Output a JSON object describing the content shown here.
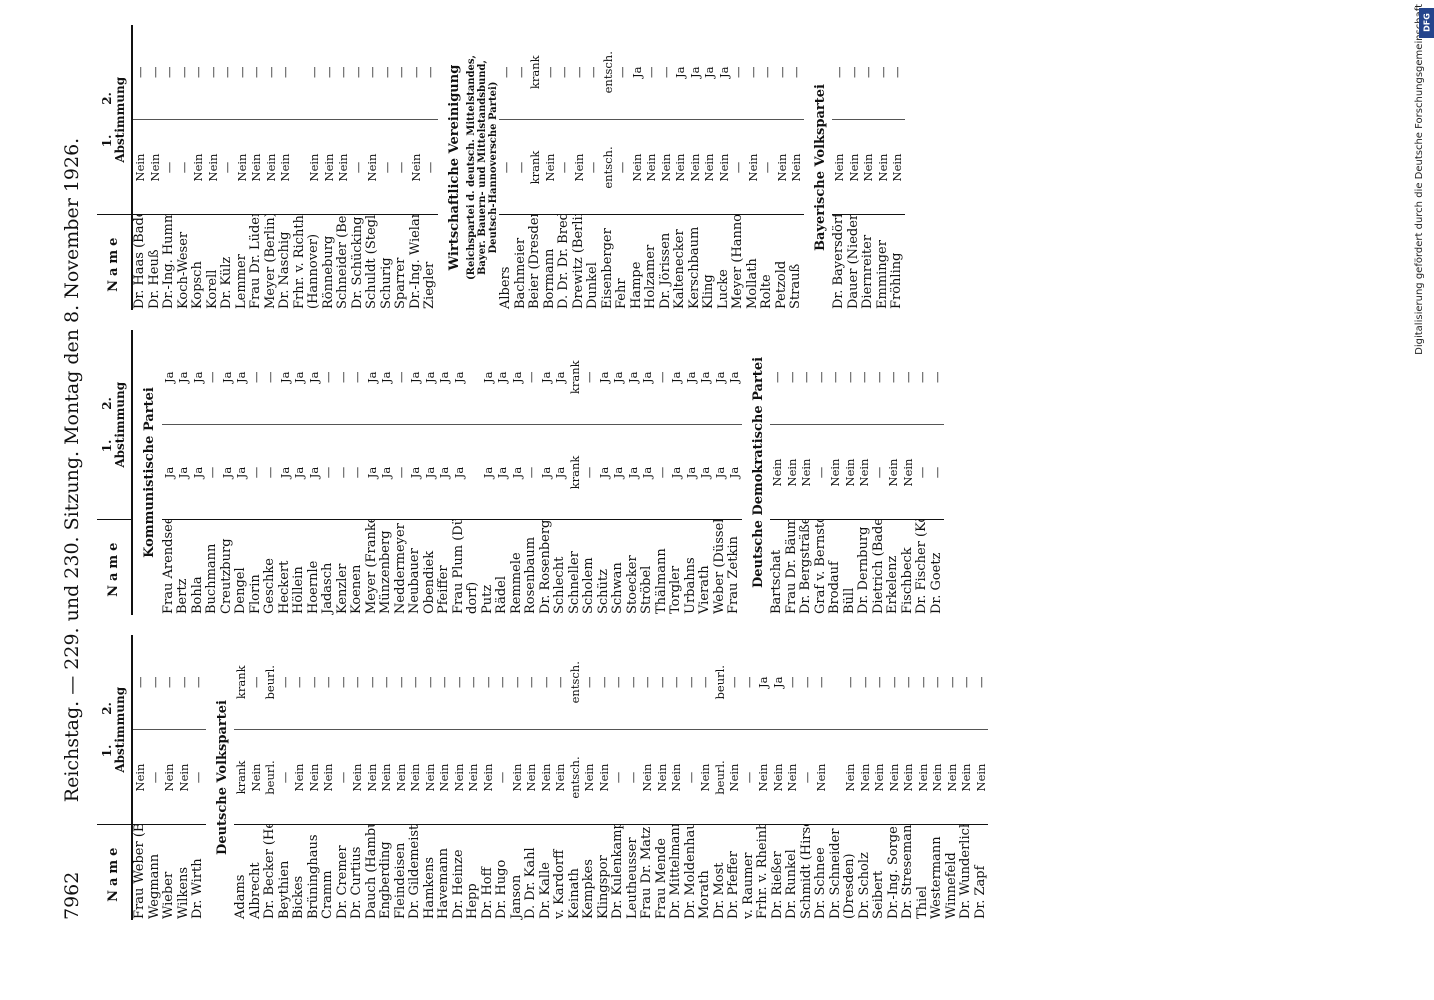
{
  "header": {
    "page_number": "7962",
    "title": "Reichstag. — 229. und 230. Sitzung. Montag den 8. November 1926."
  },
  "table_header": {
    "name": "Name",
    "vote1": "1.",
    "vote2": "2.",
    "abstimmung": "Abstimmung"
  },
  "columns": [
    {
      "rows": [
        {
          "name": "Frau Weber (Berlin)",
          "v1": "Nein",
          "v2": "—"
        },
        {
          "name": "Wegmann",
          "v1": "—",
          "v2": "—"
        },
        {
          "name": "Wieber",
          "v1": "Nein",
          "v2": "—"
        },
        {
          "name": "Wilkens",
          "v1": "Nein",
          "v2": "—"
        },
        {
          "name": "Dr. Wirth",
          "v1": "—",
          "v2": "—"
        },
        {
          "section": "Deutsche Volkspartei"
        },
        {
          "name": "Adams",
          "v1": "krank",
          "v2": "krank"
        },
        {
          "name": "Albrecht",
          "v1": "Nein",
          "v2": "—"
        },
        {
          "name": "Dr. Becker (Hessen)",
          "v1": "beurl.",
          "v2": "beurl."
        },
        {
          "name": "Beythien",
          "v1": "—",
          "v2": "—"
        },
        {
          "name": "Bickes",
          "v1": "Nein",
          "v2": "—"
        },
        {
          "name": "Brüninghaus",
          "v1": "Nein",
          "v2": "—"
        },
        {
          "name": "Cramm",
          "v1": "Nein",
          "v2": "—"
        },
        {
          "name": "Dr. Cremer",
          "v1": "—",
          "v2": "—"
        },
        {
          "name": "Dr. Curtius",
          "v1": "Nein",
          "v2": "—"
        },
        {
          "name": "Dauch (Hamburg)",
          "v1": "Nein",
          "v2": "—"
        },
        {
          "name": "Engberding",
          "v1": "Nein",
          "v2": "—"
        },
        {
          "name": "Fleindeisen",
          "v1": "Nein",
          "v2": "—"
        },
        {
          "name": "Dr. Gildemeister",
          "v1": "Nein",
          "v2": "—"
        },
        {
          "name": "Hamkens",
          "v1": "Nein",
          "v2": "—"
        },
        {
          "name": "Havemann",
          "v1": "Nein",
          "v2": "—"
        },
        {
          "name": "Dr. Heinze",
          "v1": "Nein",
          "v2": "—"
        },
        {
          "name": "Hepp",
          "v1": "Nein",
          "v2": "—"
        },
        {
          "name": "Dr. Hoff",
          "v1": "Nein",
          "v2": "—"
        },
        {
          "name": "Dr. Hugo",
          "v1": "—",
          "v2": "—"
        },
        {
          "name": "Janson",
          "v1": "Nein",
          "v2": "—"
        },
        {
          "name": "D. Dr. Kahl",
          "v1": "Nein",
          "v2": "—"
        },
        {
          "name": "Dr. Kalle",
          "v1": "Nein",
          "v2": "—"
        },
        {
          "name": "v. Kardorff",
          "v1": "Nein",
          "v2": "—"
        },
        {
          "name": "Keinath",
          "v1": "entsch.",
          "v2": "entsch."
        },
        {
          "name": "Kempkes",
          "v1": "Nein",
          "v2": "—"
        },
        {
          "name": "Klingspor",
          "v1": "Nein",
          "v2": "—"
        },
        {
          "name": "Dr. Kulenkampff",
          "v1": "—",
          "v2": "—"
        },
        {
          "name": "Leutheusser",
          "v1": "—",
          "v2": "—"
        },
        {
          "name": "Frau Dr. Matz",
          "v1": "Nein",
          "v2": "—"
        },
        {
          "name": "Frau Mende",
          "v1": "Nein",
          "v2": "—"
        },
        {
          "name": "Dr. Mittelmann",
          "v1": "Nein",
          "v2": "—"
        },
        {
          "name": "Dr. Moldenhauer",
          "v1": "—",
          "v2": "—"
        },
        {
          "name": "Morath",
          "v1": "Nein",
          "v2": "—"
        },
        {
          "name": "Dr. Most",
          "v1": "beurl.",
          "v2": "beurl."
        },
        {
          "name": "Dr. Pfeffer",
          "v1": "Nein",
          "v2": "—"
        },
        {
          "name": "v. Raumer",
          "v1": "—",
          "v2": "—"
        },
        {
          "name": "Frhr. v. Rheinbaben",
          "v1": "Nein",
          "v2": "Ja"
        },
        {
          "name": "Dr. Rießer",
          "v1": "Nein",
          "v2": "Ja"
        },
        {
          "name": "Dr. Runkel",
          "v1": "Nein",
          "v2": "—"
        },
        {
          "name": "Schmidt (Hirschberg)",
          "v1": "—",
          "v2": "—"
        },
        {
          "name": "Dr. Schnee",
          "v1": "Nein",
          "v2": "—"
        },
        {
          "name": "Dr. Schneider",
          "v1": "",
          "v2": ""
        },
        {
          "name": "(Dresden)",
          "v1": "Nein",
          "v2": "—"
        },
        {
          "name": "Dr. Scholz",
          "v1": "Nein",
          "v2": "—"
        },
        {
          "name": "Seibert",
          "v1": "Nein",
          "v2": "—"
        },
        {
          "name": "Dr.-Ing. Sorge",
          "v1": "Nein",
          "v2": "—"
        },
        {
          "name": "Dr. Stresemann",
          "v1": "Nein",
          "v2": "—"
        },
        {
          "name": "Thiel",
          "v1": "Nein",
          "v2": "—"
        },
        {
          "name": "Westermann",
          "v1": "Nein",
          "v2": "—"
        },
        {
          "name": "Winnefeld",
          "v1": "Nein",
          "v2": "—"
        },
        {
          "name": "Dr. Wunderlich",
          "v1": "Nein",
          "v2": "—"
        },
        {
          "name": "Dr. Zapf",
          "v1": "Nein",
          "v2": "—"
        }
      ]
    },
    {
      "rows": [
        {
          "section": "Kommunistische Partei"
        },
        {
          "name": "Frau Arendsee",
          "v1": "Ja",
          "v2": "Ja"
        },
        {
          "name": "Bertz",
          "v1": "Ja",
          "v2": "Ja"
        },
        {
          "name": "Bohla",
          "v1": "Ja",
          "v2": "Ja"
        },
        {
          "name": "Buchmann",
          "v1": "—",
          "v2": "—"
        },
        {
          "name": "Creutzburg",
          "v1": "Ja",
          "v2": "Ja"
        },
        {
          "name": "Dengel",
          "v1": "Ja",
          "v2": "Ja"
        },
        {
          "name": "Florin",
          "v1": "—",
          "v2": "—"
        },
        {
          "name": "Geschke",
          "v1": "—",
          "v2": "—"
        },
        {
          "name": "Heckert",
          "v1": "Ja",
          "v2": "Ja"
        },
        {
          "name": "Höllein",
          "v1": "Ja",
          "v2": "Ja"
        },
        {
          "name": "Hoernle",
          "v1": "Ja",
          "v2": "Ja"
        },
        {
          "name": "Jadasch",
          "v1": "—",
          "v2": "—"
        },
        {
          "name": "Kenzler",
          "v1": "—",
          "v2": "—"
        },
        {
          "name": "Koenen",
          "v1": "—",
          "v2": "—"
        },
        {
          "name": "Meyer (Franken)",
          "v1": "Ja",
          "v2": "Ja"
        },
        {
          "name": "Münzenberg",
          "v1": "Ja",
          "v2": "Ja"
        },
        {
          "name": "Neddermeyer",
          "v1": "—",
          "v2": "—"
        },
        {
          "name": "Neubauer",
          "v1": "Ja",
          "v2": "Ja"
        },
        {
          "name": "Obendiek",
          "v1": "Ja",
          "v2": "Ja"
        },
        {
          "name": "Pfeiffer",
          "v1": "Ja",
          "v2": "Ja"
        },
        {
          "name": "Frau Plum (Düssel-",
          "v1": "Ja",
          "v2": "Ja"
        },
        {
          "name": "dorf)",
          "v1": "",
          "v2": ""
        },
        {
          "name": "Putz",
          "v1": "Ja",
          "v2": "Ja"
        },
        {
          "name": "Rädel",
          "v1": "Ja",
          "v2": "Ja"
        },
        {
          "name": "Remmele",
          "v1": "Ja",
          "v2": "Ja"
        },
        {
          "name": "Rosenbaum",
          "v1": "—",
          "v2": "—"
        },
        {
          "name": "Dr. Rosenberg",
          "v1": "Ja",
          "v2": "Ja"
        },
        {
          "name": "Schlecht",
          "v1": "Ja",
          "v2": "Ja"
        },
        {
          "name": "Schneller",
          "v1": "krank",
          "v2": "krank"
        },
        {
          "name": "Scholem",
          "v1": "—",
          "v2": "—"
        },
        {
          "name": "Schütz",
          "v1": "Ja",
          "v2": "Ja"
        },
        {
          "name": "Schwan",
          "v1": "Ja",
          "v2": "Ja"
        },
        {
          "name": "Stoecker",
          "v1": "Ja",
          "v2": "Ja"
        },
        {
          "name": "Ströbel",
          "v1": "Ja",
          "v2": "Ja"
        },
        {
          "name": "Thälmann",
          "v1": "—",
          "v2": "—"
        },
        {
          "name": "Torgler",
          "v1": "Ja",
          "v2": "Ja"
        },
        {
          "name": "Urbahns",
          "v1": "Ja",
          "v2": "Ja"
        },
        {
          "name": "Vierath",
          "v1": "Ja",
          "v2": "Ja"
        },
        {
          "name": "Weber (Düsseldorf)",
          "v1": "Ja",
          "v2": "Ja"
        },
        {
          "name": "Frau Zetkin",
          "v1": "Ja",
          "v2": "Ja"
        },
        {
          "section": "Deutsche Demokratische Partei"
        },
        {
          "name": "Bartschat",
          "v1": "Nein",
          "v2": "—"
        },
        {
          "name": "Frau Dr. Bäumer",
          "v1": "Nein",
          "v2": "—"
        },
        {
          "name": "Dr. Bergsträßer",
          "v1": "Nein",
          "v2": "—"
        },
        {
          "name": "Graf v. Bernstorff",
          "v1": "—",
          "v2": "—"
        },
        {
          "name": "Brodauf",
          "v1": "Nein",
          "v2": "—"
        },
        {
          "name": "Büll",
          "v1": "Nein",
          "v2": "—"
        },
        {
          "name": "Dr. Dernburg",
          "v1": "Nein",
          "v2": "—"
        },
        {
          "name": "Dietrich (Baden)",
          "v1": "—",
          "v2": "—"
        },
        {
          "name": "Erkelenz",
          "v1": "Nein",
          "v2": "—"
        },
        {
          "name": "Fischbeck",
          "v1": "Nein",
          "v2": "—"
        },
        {
          "name": "Dr. Fischer (Köln)",
          "v1": "—",
          "v2": "—"
        },
        {
          "name": "Dr. Goetz",
          "v1": "—",
          "v2": "—"
        }
      ]
    },
    {
      "rows": [
        {
          "name": "Dr. Haas (Baden)",
          "v1": "Nein",
          "v2": "—"
        },
        {
          "name": "Dr. Heuß",
          "v1": "Nein",
          "v2": "—"
        },
        {
          "name": "Dr.-Ing. Hummel",
          "v1": "—",
          "v2": "—"
        },
        {
          "name": "Koch-Weser",
          "v1": "—",
          "v2": "—"
        },
        {
          "name": "Kopsch",
          "v1": "Nein",
          "v2": "—"
        },
        {
          "name": "Korell",
          "v1": "Nein",
          "v2": "—"
        },
        {
          "name": "Dr. Külz",
          "v1": "—",
          "v2": "—"
        },
        {
          "name": "Lemmer",
          "v1": "Nein",
          "v2": "—"
        },
        {
          "name": "Frau Dr. Lüders",
          "v1": "Nein",
          "v2": "—"
        },
        {
          "name": "Meyer (Berlin)",
          "v1": "Nein",
          "v2": "—"
        },
        {
          "name": "Dr. Naschig",
          "v1": "Nein",
          "v2": "—"
        },
        {
          "name": "Frhr. v. Richthofen",
          "v1": "",
          "v2": ""
        },
        {
          "name": "(Hannover)",
          "v1": "Nein",
          "v2": "—"
        },
        {
          "name": "Rönneburg",
          "v1": "Nein",
          "v2": "—"
        },
        {
          "name": "Schneider (Berlin)",
          "v1": "Nein",
          "v2": "—"
        },
        {
          "name": "Dr. Schücking",
          "v1": "—",
          "v2": "—"
        },
        {
          "name": "Schuldt (Steglitz)",
          "v1": "Nein",
          "v2": "—"
        },
        {
          "name": "Schurig",
          "v1": "—",
          "v2": "—"
        },
        {
          "name": "Sparrer",
          "v1": "—",
          "v2": "—"
        },
        {
          "name": "Dr.-Ing. Wieland",
          "v1": "Nein",
          "v2": "—"
        },
        {
          "name": "Ziegler",
          "v1": "—",
          "v2": "—"
        },
        {
          "section": "Wirtschaftliche Vereinigung"
        },
        {
          "subsection": "(Reichspartei d. deutsch. Mittelstandes,"
        },
        {
          "subsection": "Bayer. Bauern- und Mittelstandsbund,"
        },
        {
          "subsection": "Deutsch-Hannoversche Partei)"
        },
        {
          "name": "Albers",
          "v1": "—",
          "v2": "—"
        },
        {
          "name": "Bachmeier",
          "v1": "—",
          "v2": "—"
        },
        {
          "name": "Beier (Dresden)",
          "v1": "krank",
          "v2": "krank"
        },
        {
          "name": "Bormann",
          "v1": "Nein",
          "v2": "—"
        },
        {
          "name": "D. Dr. Dr. Bredt",
          "v1": "—",
          "v2": "—"
        },
        {
          "name": "Drewitz (Berlin)",
          "v1": "Nein",
          "v2": "—"
        },
        {
          "name": "Dunkel",
          "v1": "—",
          "v2": "—"
        },
        {
          "name": "Eisenberger",
          "v1": "entsch.",
          "v2": "entsch."
        },
        {
          "name": "Fehr",
          "v1": "—",
          "v2": "—"
        },
        {
          "name": "Hampe",
          "v1": "Nein",
          "v2": "Ja"
        },
        {
          "name": "Holzamer",
          "v1": "Nein",
          "v2": "—"
        },
        {
          "name": "Dr. Jörissen",
          "v1": "Nein",
          "v2": "—"
        },
        {
          "name": "Kaltenecker",
          "v1": "Nein",
          "v2": "Ja"
        },
        {
          "name": "Kerschbaum",
          "v1": "Nein",
          "v2": "Ja"
        },
        {
          "name": "Kling",
          "v1": "Nein",
          "v2": "Ja"
        },
        {
          "name": "Lucke",
          "v1": "Nein",
          "v2": "Ja"
        },
        {
          "name": "Meyer (Hannover)",
          "v1": "—",
          "v2": "—"
        },
        {
          "name": "Mollath",
          "v1": "Nein",
          "v2": "—"
        },
        {
          "name": "Rolte",
          "v1": "—",
          "v2": "—"
        },
        {
          "name": "Petzold",
          "v1": "Nein",
          "v2": "—"
        },
        {
          "name": "Strauß",
          "v1": "Nein",
          "v2": "—"
        },
        {
          "section": "Bayerische Volkspartei"
        },
        {
          "name": "Dr. Bayersdörfer",
          "v1": "Nein",
          "v2": "—"
        },
        {
          "name": "Dauer (Niederbayern)",
          "v1": "Nein",
          "v2": "—"
        },
        {
          "name": "Diernreiter",
          "v1": "Nein",
          "v2": "—"
        },
        {
          "name": "Emminger",
          "v1": "Nein",
          "v2": "—"
        },
        {
          "name": "Fröhling",
          "v1": "Nein",
          "v2": "—"
        }
      ]
    }
  ],
  "side_note": "Digitalisierung gefördert durch die Deutsche Forschungsgemeinschaft",
  "logo_text": "DFG"
}
